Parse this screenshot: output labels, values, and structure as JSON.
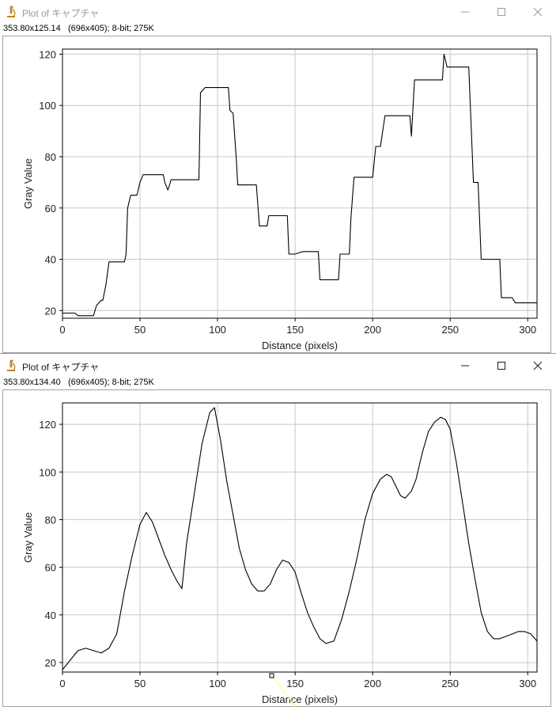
{
  "windows": [
    {
      "title": "Plot of キャプチャ",
      "info": "353.80x125.14   (696x405); 8-bit; 275K",
      "active": false,
      "chart_data": {
        "type": "line",
        "xlabel": "Distance (pixels)",
        "ylabel": "Gray Value",
        "xlim": [
          0,
          306
        ],
        "ylim": [
          17,
          122
        ],
        "x_ticks": [
          0,
          50,
          100,
          150,
          200,
          250,
          300
        ],
        "y_ticks": [
          20,
          40,
          60,
          80,
          100,
          120
        ],
        "grid": true,
        "series": [
          {
            "x": [
              0,
              8,
              10,
              20,
              22,
              25,
              26,
              28,
              30,
              40,
              41,
              42,
              44,
              48,
              50,
              52,
              62,
              65,
              66,
              68,
              70,
              80,
              86,
              88,
              89,
              92,
              100,
              107,
              108,
              110,
              112,
              113,
              115,
              125,
              127,
              130,
              132,
              133,
              140,
              145,
              146,
              148,
              150,
              155,
              160,
              165,
              166,
              168,
              170,
              178,
              179,
              180,
              185,
              186,
              188,
              190,
              200,
              202,
              203,
              205,
              208,
              210,
              224,
              225,
              227,
              228,
              245,
              246,
              248,
              250,
              262,
              265,
              268,
              270,
              282,
              283,
              285,
              290,
              292,
              300,
              306
            ],
            "y": [
              19,
              19,
              18,
              18,
              22,
              24,
              24,
              30,
              39,
              39,
              42,
              60,
              65,
              65,
              70,
              73,
              73,
              73,
              70,
              67,
              71,
              71,
              71,
              71,
              105,
              107,
              107,
              107,
              98,
              97,
              80,
              69,
              69,
              69,
              53,
              53,
              53,
              57,
              57,
              57,
              42,
              42,
              42,
              43,
              43,
              43,
              32,
              32,
              32,
              32,
              42,
              42,
              42,
              56,
              72,
              72,
              72,
              84,
              84,
              84,
              96,
              96,
              96,
              88,
              110,
              110,
              110,
              120,
              115,
              115,
              115,
              70,
              70,
              40,
              40,
              25,
              25,
              25,
              23,
              23,
              23
            ]
          }
        ]
      }
    },
    {
      "title": "Plot of キャプチャ",
      "info": "353.80x134.40   (696x405); 8-bit; 275K",
      "active": true,
      "chart_data": {
        "type": "line",
        "xlabel": "Distance (pixels)",
        "ylabel": "Gray Value",
        "xlim": [
          0,
          306
        ],
        "ylim": [
          16,
          129
        ],
        "x_ticks": [
          0,
          50,
          100,
          150,
          200,
          250,
          300
        ],
        "y_ticks": [
          20,
          40,
          60,
          80,
          100,
          120
        ],
        "grid": true,
        "series": [
          {
            "x": [
              0,
              5,
              10,
              15,
              20,
              25,
              30,
              35,
              40,
              45,
              50,
              54,
              58,
              62,
              66,
              70,
              74,
              77,
              80,
              85,
              90,
              95,
              98,
              102,
              106,
              110,
              114,
              118,
              122,
              126,
              130,
              134,
              138,
              142,
              146,
              150,
              154,
              158,
              162,
              166,
              170,
              175,
              180,
              185,
              190,
              195,
              200,
              205,
              209,
              212,
              215,
              218,
              221,
              225,
              228,
              232,
              236,
              240,
              244,
              247,
              250,
              254,
              258,
              262,
              266,
              270,
              274,
              278,
              282,
              286,
              290,
              294,
              298,
              302,
              306
            ],
            "y": [
              17,
              21,
              25,
              26,
              25,
              24,
              26,
              32,
              50,
              65,
              78,
              83,
              79,
              72,
              65,
              59,
              54,
              51,
              70,
              91,
              112,
              125,
              127,
              113,
              96,
              82,
              68,
              59,
              53,
              50,
              50,
              53,
              59,
              63,
              62,
              58,
              49,
              41,
              35,
              30,
              28,
              29,
              38,
              50,
              64,
              80,
              91,
              97,
              99,
              98,
              94,
              90,
              89,
              92,
              97,
              108,
              117,
              121,
              123,
              122,
              118,
              104,
              87,
              70,
              55,
              41,
              33,
              30,
              30,
              31,
              32,
              33,
              33,
              32,
              29
            ]
          }
        ]
      }
    }
  ]
}
